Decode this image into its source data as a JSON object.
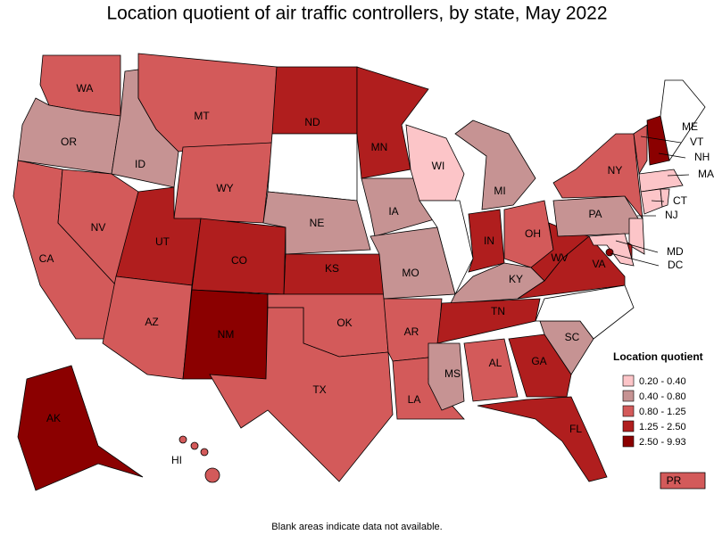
{
  "title": "Location quotient of air traffic controllers, by state, May 2022",
  "legend": {
    "title": "Location quotient",
    "items": [
      {
        "label": "0.20 - 0.40",
        "color": "#fcc5c8"
      },
      {
        "label": "0.40 - 0.80",
        "color": "#c69393"
      },
      {
        "label": "0.80 - 1.25",
        "color": "#d35a5a"
      },
      {
        "label": "1.25 - 2.50",
        "color": "#b01e1e"
      },
      {
        "label": "2.50 - 9.93",
        "color": "#8b0000"
      }
    ]
  },
  "note": "Blank areas indicate data not available.",
  "states": [
    {
      "label": "WA",
      "color": "#d35a5a"
    },
    {
      "label": "OR",
      "color": "#c69393"
    },
    {
      "label": "CA",
      "color": "#d35a5a"
    },
    {
      "label": "NV",
      "color": "#d35a5a"
    },
    {
      "label": "ID",
      "color": "#c69393"
    },
    {
      "label": "MT",
      "color": "#d35a5a"
    },
    {
      "label": "WY",
      "color": "#d35a5a"
    },
    {
      "label": "UT",
      "color": "#b01e1e"
    },
    {
      "label": "CO",
      "color": "#b01e1e"
    },
    {
      "label": "AZ",
      "color": "#d35a5a"
    },
    {
      "label": "NM",
      "color": "#8b0000"
    },
    {
      "label": "ND",
      "color": "#b01e1e"
    },
    {
      "color": "#ffffff"
    },
    {
      "label": "NE",
      "color": "#c69393"
    },
    {
      "label": "KS",
      "color": "#b01e1e"
    },
    {
      "label": "OK",
      "color": "#d35a5a"
    },
    {
      "label": "TX",
      "color": "#d35a5a"
    },
    {
      "label": "MN",
      "color": "#b01e1e"
    },
    {
      "label": "IA",
      "color": "#c69393"
    },
    {
      "label": "MO",
      "color": "#c69393"
    },
    {
      "label": "AR",
      "color": "#d35a5a"
    },
    {
      "label": "LA",
      "color": "#d35a5a"
    },
    {
      "label": "WI",
      "color": "#fcc5c8"
    },
    {
      "color": "#ffffff"
    },
    {
      "label": "MI",
      "color": "#c69393"
    },
    {
      "label": "IN",
      "color": "#b01e1e"
    },
    {
      "label": "OH",
      "color": "#d35a5a"
    },
    {
      "label": "KY",
      "color": "#c69393"
    },
    {
      "label": "TN",
      "color": "#b01e1e"
    },
    {
      "label": "MS",
      "color": "#c69393"
    },
    {
      "label": "AL",
      "color": "#d35a5a"
    },
    {
      "label": "GA",
      "color": "#b01e1e"
    },
    {
      "label": "FL",
      "color": "#b01e1e"
    },
    {
      "label": "SC",
      "color": "#c69393"
    },
    {
      "color": "#ffffff"
    },
    {
      "label": "VA",
      "color": "#b01e1e"
    },
    {
      "label": "WV",
      "color": "#b01e1e"
    },
    {
      "label": "PA",
      "color": "#c69393"
    },
    {
      "label": "NY",
      "color": "#d35a5a"
    },
    {
      "label": "VT",
      "color": "#d35a5a"
    },
    {
      "label": "NH",
      "color": "#8b0000"
    },
    {
      "label": "ME",
      "color": "#ffffff"
    },
    {
      "label": "MA",
      "color": "#fcc5c8"
    },
    {
      "label": "CT",
      "color": "#fcc5c8"
    },
    {
      "color": "#fcc5c8"
    },
    {
      "label": "NJ",
      "color": "#fcc5c8"
    },
    {
      "color": "#b01e1e"
    },
    {
      "label": "MD",
      "color": "#fcc5c8"
    },
    {
      "label": "DC",
      "color": "#8b0000"
    },
    {
      "label": "AK",
      "color": "#8b0000"
    },
    {
      "label": "HI",
      "color": "#d35a5a"
    },
    {
      "label": "PR",
      "color": "#d35a5a"
    }
  ]
}
